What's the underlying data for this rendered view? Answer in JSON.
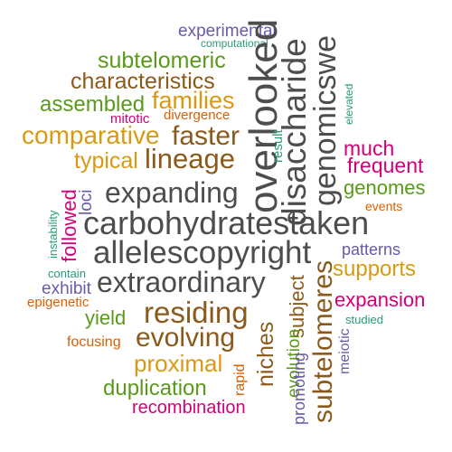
{
  "colors": {
    "gray": "#4d4d4d",
    "brown": "#8b5a1b",
    "gold": "#d99a13",
    "green": "#5a9a1a",
    "magenta": "#d4007a",
    "purple": "#6a5aa8",
    "teal": "#2a9a7a",
    "orange": "#d95f02"
  },
  "words": [
    "experimental",
    "computational",
    "subtelomeric",
    "characteristics",
    "families",
    "assembled",
    "mitotic",
    "divergence",
    "comparative",
    "faster",
    "typical",
    "lineage",
    "expanding",
    "carbohydratestaken",
    "allelescopyright",
    "extraordinary",
    "overlooked",
    "disaccharide",
    "genomicswe",
    "elevated",
    "result",
    "much",
    "frequent",
    "genomes",
    "events",
    "loci",
    "followed",
    "instability",
    "patterns",
    "supports",
    "contain",
    "exhibit",
    "epigenetic",
    "expansion",
    "residing",
    "yield",
    "evolving",
    "focusing",
    "proximal",
    "studied",
    "meiotic",
    "subtelomeres",
    "subject",
    "evolution",
    "niches",
    "promoting",
    "rapid",
    "duplication",
    "recombination"
  ]
}
